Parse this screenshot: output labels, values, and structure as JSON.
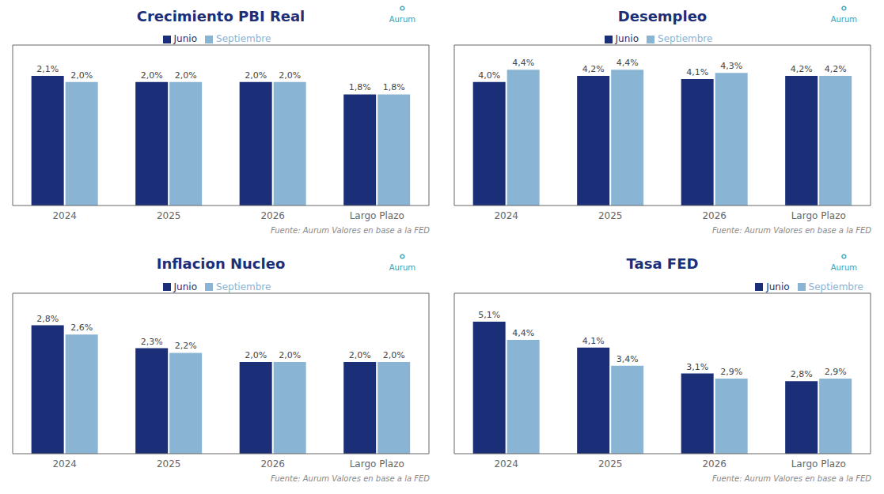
{
  "chart_data": [
    {
      "type": "bar",
      "title": "Crecimiento  PBI Real",
      "categories": [
        "2024",
        "2025",
        "2026",
        "Largo Plazo"
      ],
      "series": [
        {
          "name": "Junio",
          "color": "#1b2f78",
          "values": [
            2.1,
            2.0,
            2.0,
            1.8
          ],
          "value_labels": [
            "2,1%",
            "2,0%",
            "2,0%",
            "1,8%"
          ]
        },
        {
          "name": "Septiembre",
          "color": "#8ab4d4",
          "values": [
            2.0,
            2.0,
            2.0,
            1.8
          ],
          "value_labels": [
            "2,0%",
            "2,0%",
            "2,0%",
            "1,8%"
          ]
        }
      ],
      "ylim": [
        0,
        2.6
      ],
      "tick_labels": "x",
      "grid": false,
      "legend": "upper center",
      "data_labels": true,
      "annotations": [
        "Fuente: Aurum Valores en base a la FED",
        "⚬",
        "Aurum"
      ]
    },
    {
      "type": "bar",
      "title": "Desempleo",
      "categories": [
        "2024",
        "2025",
        "2026",
        "Largo Plazo"
      ],
      "series": [
        {
          "name": "Junio",
          "color": "#1b2f78",
          "values": [
            4.0,
            4.2,
            4.1,
            4.2
          ],
          "value_labels": [
            "4,0%",
            "4,2%",
            "4,1%",
            "4,2%"
          ]
        },
        {
          "name": "Septiembre",
          "color": "#8ab4d4",
          "values": [
            4.4,
            4.4,
            4.3,
            4.2
          ],
          "value_labels": [
            "4,4%",
            "4,4%",
            "4,3%",
            "4,2%"
          ]
        }
      ],
      "ylim": [
        0,
        5.2
      ],
      "tick_labels": "x",
      "grid": false,
      "legend": "upper center",
      "data_labels": true,
      "annotations": [
        "Fuente: Aurum Valores en base a la FED",
        "⚬",
        "Aurum"
      ]
    },
    {
      "type": "bar",
      "title": "Inflacion  Nucleo",
      "categories": [
        "2024",
        "2025",
        "2026",
        "Largo Plazo"
      ],
      "series": [
        {
          "name": "Junio",
          "color": "#1b2f78",
          "values": [
            2.8,
            2.3,
            2.0,
            2.0
          ],
          "value_labels": [
            "2,8%",
            "2,3%",
            "2,0%",
            "2,0%"
          ]
        },
        {
          "name": "Septiembre",
          "color": "#8ab4d4",
          "values": [
            2.6,
            2.2,
            2.0,
            2.0
          ],
          "value_labels": [
            "2,6%",
            "2,2%",
            "2,0%",
            "2,0%"
          ]
        }
      ],
      "ylim": [
        0,
        3.5
      ],
      "tick_labels": "x",
      "grid": false,
      "legend": "upper center",
      "data_labels": true,
      "annotations": [
        "Fuente: Aurum Valores en base a la FED",
        "⚬",
        "Aurum"
      ]
    },
    {
      "type": "bar",
      "title": "Tasa FED",
      "categories": [
        "2024",
        "2025",
        "2026",
        "Largo Plazo"
      ],
      "series": [
        {
          "name": "Junio",
          "color": "#1b2f78",
          "values": [
            5.1,
            4.1,
            3.1,
            2.8
          ],
          "value_labels": [
            "5,1%",
            "4,1%",
            "3,1%",
            "2,8%"
          ]
        },
        {
          "name": "Septiembre",
          "color": "#8ab4d4",
          "values": [
            4.4,
            3.4,
            2.9,
            2.9
          ],
          "value_labels": [
            "4,4%",
            "3,4%",
            "2,9%",
            "2,9%"
          ]
        }
      ],
      "ylim": [
        0,
        6.2
      ],
      "tick_labels": "x",
      "grid": false,
      "legend": "upper right",
      "data_labels": true,
      "annotations": [
        "Fuente: Aurum Valores en base a la FED",
        "⚬",
        "Aurum"
      ]
    }
  ]
}
